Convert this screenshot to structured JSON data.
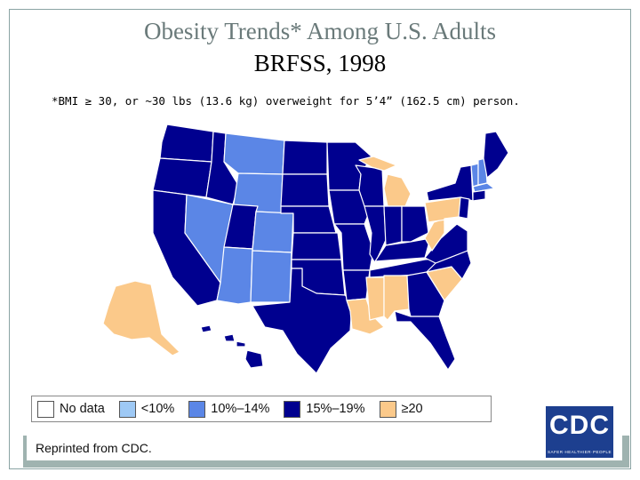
{
  "title": {
    "line1": "Obesity Trends* Among U.S. Adults",
    "line2": "BRFSS, 1998"
  },
  "footnote": "*BMI ≥ 30, or ~30 lbs (13.6 kg) overweight for 5’4” (162.5 cm) person.",
  "legend": [
    {
      "label": "No data",
      "color": "#ffffff"
    },
    {
      "label": "<10%",
      "color": "#9ec9f5"
    },
    {
      "label": "10%–14%",
      "color": "#5b86e6"
    },
    {
      "label": "15%–19%",
      "color": "#00008f"
    },
    {
      "label": "≥20",
      "color": "#fbc98a"
    }
  ],
  "map_colors": {
    "WA": "15%–19%",
    "OR": "15%–19%",
    "CA": "15%–19%",
    "ID": "15%–19%",
    "NV": "10%–14%",
    "MT": "10%–14%",
    "WY": "10%–14%",
    "UT": "15%–19%",
    "AZ": "10%–14%",
    "CO": "10%–14%",
    "NM": "10%–14%",
    "ND": "15%–19%",
    "SD": "15%–19%",
    "NE": "15%–19%",
    "KS": "15%–19%",
    "OK": "15%–19%",
    "TX": "15%–19%",
    "MN": "15%–19%",
    "IA": "15%–19%",
    "MO": "15%–19%",
    "AR": "15%–19%",
    "LA": "≥20",
    "WI": "15%–19%",
    "IL": "15%–19%",
    "MI": "≥20",
    "IN": "15%–19%",
    "OH": "15%–19%",
    "KY": "15%–19%",
    "TN": "15%–19%",
    "MS": "≥20",
    "AL": "≥20",
    "GA": "15%–19%",
    "FL": "15%–19%",
    "SC": "≥20",
    "NC": "15%–19%",
    "VA": "15%–19%",
    "WV": "≥20",
    "PA": "≥20",
    "NY": "15%–19%",
    "ME": "15%–19%",
    "VT": "10%–14%",
    "NH": "10%–14%",
    "MA": "10%–14%",
    "CT": "15%–19%",
    "NJ": "15%–19%",
    "AK": "≥20",
    "HI": "15%–19%"
  },
  "reprint_text": "Reprinted from CDC.",
  "logo": {
    "text": "CDC",
    "tagline": "SAFER·HEALTHIER·PEOPLE"
  }
}
